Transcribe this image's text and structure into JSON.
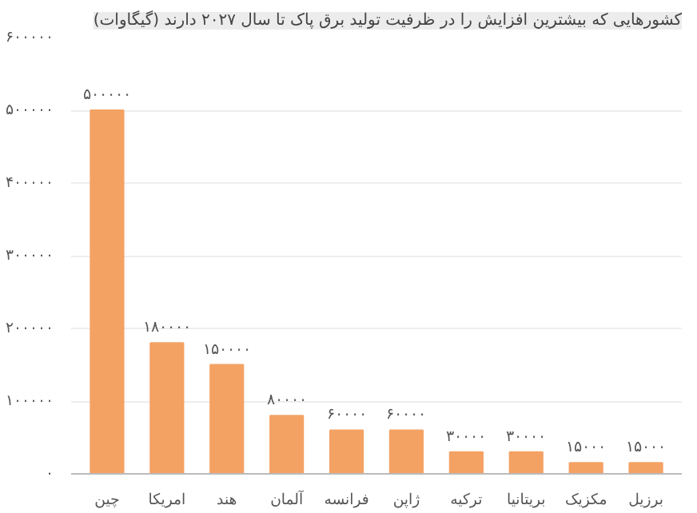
{
  "chart_data": {
    "type": "bar",
    "title": "کشورهایی که بیشترین افزایش را در ظرفیت تولید برق پاک تا سال ۲۰۲۷ دارند (گیگاوات)",
    "categories": [
      "چین",
      "امریکا",
      "هند",
      "آلمان",
      "فرانسه",
      "ژاپن",
      "ترکیه",
      "بریتانیا",
      "مکزیک",
      "برزیل"
    ],
    "values": [
      500000,
      180000,
      150000,
      80000,
      60000,
      60000,
      30000,
      30000,
      15000,
      15000
    ],
    "value_labels": [
      "۵۰۰۰۰۰",
      "۱۸۰۰۰۰",
      "۱۵۰۰۰۰",
      "۸۰۰۰۰",
      "۶۰۰۰۰",
      "۶۰۰۰۰",
      "۳۰۰۰۰",
      "۳۰۰۰۰",
      "۱۵۰۰۰",
      "۱۵۰۰۰"
    ],
    "color": "#f4a264",
    "ylim": [
      0,
      600000
    ],
    "yticks": [
      {
        "value": 0,
        "label": "۰"
      },
      {
        "value": 100000,
        "label": "۱۰۰۰۰۰"
      },
      {
        "value": 200000,
        "label": "۲۰۰۰۰۰"
      },
      {
        "value": 300000,
        "label": "۳۰۰۰۰۰"
      },
      {
        "value": 400000,
        "label": "۴۰۰۰۰۰"
      },
      {
        "value": 500000,
        "label": "۵۰۰۰۰۰"
      },
      {
        "value": 600000,
        "label": "۶۰۰۰۰۰"
      }
    ],
    "grid": "y"
  }
}
